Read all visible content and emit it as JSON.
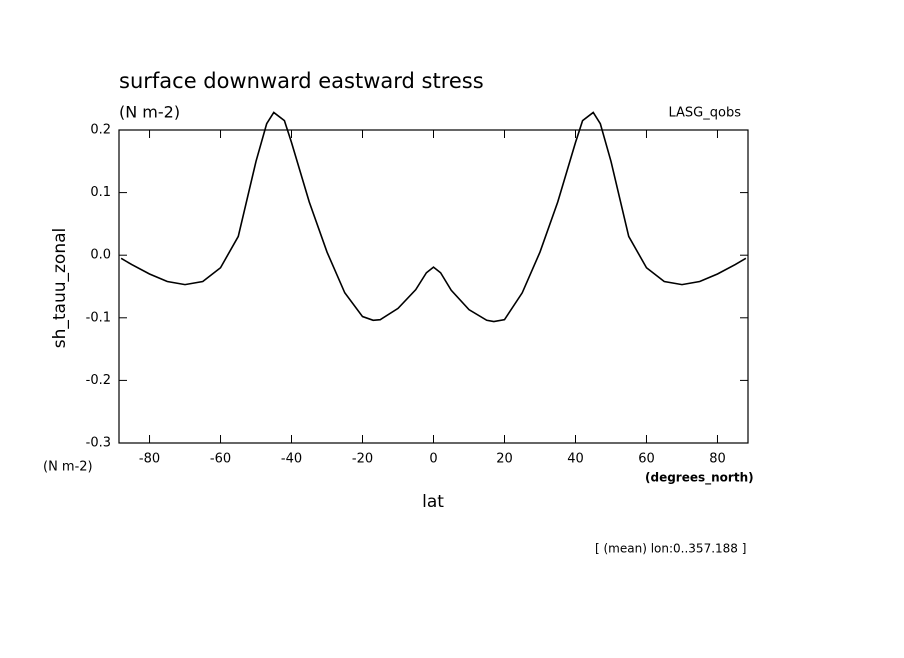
{
  "chart_data": {
    "type": "line",
    "title": "surface downward eastward stress",
    "y_units": "(N m-2)",
    "dataset": "LASG_qobs",
    "ylabel": "sh_tauu_zonal",
    "xlabel": "lat",
    "x_units": "(degrees_north)",
    "note": "[ (mean) lon:0..357.188 ]",
    "x": [
      -88,
      -85,
      -80,
      -75,
      -70,
      -65,
      -60,
      -55,
      -50,
      -47,
      -45,
      -42,
      -40,
      -35,
      -30,
      -25,
      -20,
      -17,
      -15,
      -10,
      -5,
      -2,
      0,
      2,
      5,
      10,
      15,
      17,
      20,
      25,
      30,
      35,
      40,
      42,
      45,
      47,
      50,
      55,
      60,
      65,
      70,
      75,
      80,
      85,
      88
    ],
    "series": [
      {
        "name": "LASG_qobs",
        "color": "#000000",
        "values": [
          -0.005,
          -0.015,
          -0.03,
          -0.042,
          -0.047,
          -0.042,
          -0.02,
          0.03,
          0.15,
          0.21,
          0.228,
          0.215,
          0.18,
          0.085,
          0.005,
          -0.06,
          -0.098,
          -0.104,
          -0.103,
          -0.085,
          -0.055,
          -0.028,
          -0.019,
          -0.028,
          -0.056,
          -0.087,
          -0.104,
          -0.106,
          -0.103,
          -0.06,
          0.005,
          0.085,
          0.18,
          0.215,
          0.228,
          0.21,
          0.15,
          0.03,
          -0.02,
          -0.042,
          -0.047,
          -0.042,
          -0.03,
          -0.015,
          -0.005
        ]
      }
    ],
    "xlim": [
      -88.6,
      88.6
    ],
    "ylim": [
      -0.3,
      0.2
    ],
    "xticks": [
      -80,
      -60,
      -40,
      -20,
      0,
      20,
      40,
      60,
      80
    ],
    "yticks": [
      -0.3,
      -0.2,
      -0.1,
      {
        "value": 0,
        "label": "0.0"
      },
      0.1,
      0.2
    ]
  }
}
